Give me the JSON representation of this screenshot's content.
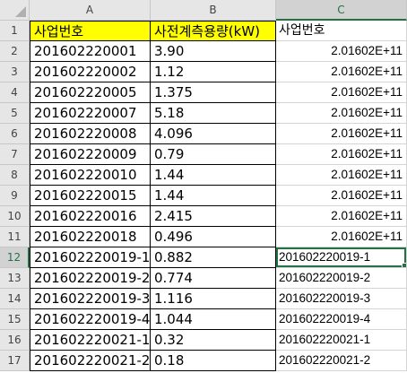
{
  "columns": [
    "A",
    "B",
    "C"
  ],
  "selected_column": "C",
  "selected_row": 12,
  "rows": [
    {
      "num": "1",
      "a": "사업번호",
      "b": "사전계측용량(kW)",
      "c": "사업번호"
    },
    {
      "num": "2",
      "a": "201602220001",
      "b": "3.90",
      "c": "2.01602E+11"
    },
    {
      "num": "3",
      "a": "201602220002",
      "b": "1.12",
      "c": "2.01602E+11"
    },
    {
      "num": "4",
      "a": "201602220005",
      "b": "1.375",
      "c": "2.01602E+11"
    },
    {
      "num": "5",
      "a": "201602220007",
      "b": "5.18",
      "c": "2.01602E+11"
    },
    {
      "num": "6",
      "a": "201602220008",
      "b": "4.096",
      "c": "2.01602E+11"
    },
    {
      "num": "7",
      "a": "201602220009",
      "b": "0.79",
      "c": "2.01602E+11"
    },
    {
      "num": "8",
      "a": "201602220010",
      "b": "1.44",
      "c": "2.01602E+11"
    },
    {
      "num": "9",
      "a": "201602220015",
      "b": "1.44",
      "c": "2.01602E+11"
    },
    {
      "num": "10",
      "a": "201602220016",
      "b": "2.415",
      "c": "2.01602E+11"
    },
    {
      "num": "11",
      "a": "201602220018",
      "b": "0.496",
      "c": "2.01602E+11"
    },
    {
      "num": "12",
      "a": "201602220019-1",
      "b": "0.882",
      "c": "201602220019-1"
    },
    {
      "num": "13",
      "a": "201602220019-2",
      "b": "0.774",
      "c": "201602220019-2"
    },
    {
      "num": "14",
      "a": "201602220019-3",
      "b": "1.116",
      "c": "201602220019-3"
    },
    {
      "num": "15",
      "a": "201602220019-4",
      "b": "1.044",
      "c": "201602220019-4"
    },
    {
      "num": "16",
      "a": "201602220021-1",
      "b": "0.32",
      "c": "201602220021-1"
    },
    {
      "num": "17",
      "a": "201602220021-2",
      "b": "0.18",
      "c": "201602220021-2"
    }
  ]
}
